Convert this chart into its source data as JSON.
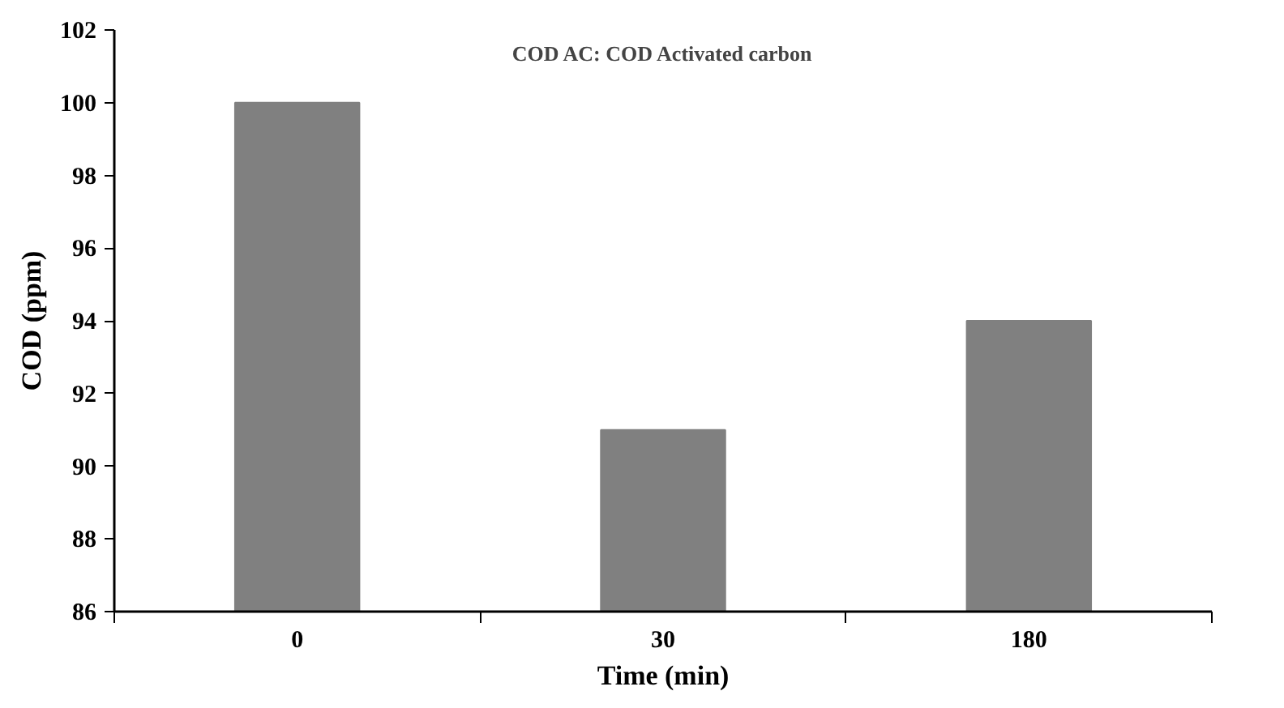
{
  "chart_data": {
    "type": "bar",
    "categories": [
      "0",
      "30",
      "180"
    ],
    "values": [
      100,
      91,
      94
    ],
    "color": "#808080",
    "xlabel": "Time (min)",
    "ylabel": "COD (ppm)",
    "ylim": [
      86,
      102
    ],
    "yticks": [
      86,
      88,
      90,
      92,
      94,
      96,
      98,
      100,
      102
    ],
    "annotations": [
      "COD AC: COD Activated carbon"
    ],
    "grid": false
  }
}
